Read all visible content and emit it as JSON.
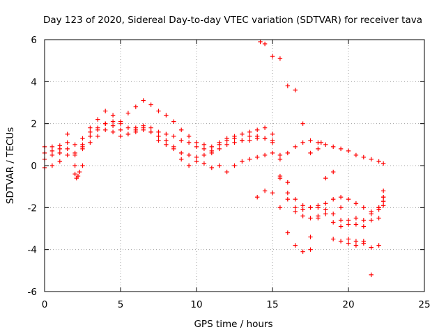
{
  "chart_data": {
    "type": "scatter",
    "title": "Day 123 of 2020, Sidereal Day-to-day VTEC variation (SDTVAR) for receiver tava",
    "xlabel": "GPS time / hours",
    "ylabel": "SDTVAR / TECUs",
    "xlim": [
      0,
      25
    ],
    "ylim": [
      -6,
      6
    ],
    "xticks": [
      0,
      5,
      10,
      15,
      20,
      25
    ],
    "yticks": [
      -6,
      -4,
      -2,
      0,
      2,
      4,
      6
    ],
    "grid": true,
    "marker": "+",
    "color": "#ff0000",
    "series": [
      {
        "x": [
          0.0,
          0.5,
          1.0,
          1.5,
          2.0,
          2.5,
          3.0,
          3.5,
          4.0,
          4.5,
          5.0,
          5.5,
          6.0,
          6.5,
          7.0,
          7.5,
          8.0,
          8.5,
          9.0,
          9.5,
          10.0,
          10.5,
          11.0,
          11.5,
          12.0,
          12.5,
          13.0,
          13.5,
          14.0,
          14.5,
          15.0,
          15.5,
          16.0,
          16.5,
          17.0,
          17.5,
          18.0,
          18.5,
          19.0,
          19.5,
          20.0,
          20.5,
          21.0,
          21.5,
          22.0,
          22.3
        ],
        "y": [
          0.9,
          0.9,
          0.95,
          1.1,
          1.0,
          1.3,
          1.6,
          1.8,
          2.0,
          2.1,
          2.0,
          1.8,
          1.7,
          1.8,
          1.8,
          1.6,
          1.5,
          1.4,
          1.2,
          1.1,
          0.9,
          0.8,
          0.7,
          1.0,
          1.2,
          1.3,
          1.2,
          1.4,
          1.4,
          1.3,
          1.1,
          -0.5,
          -1.6,
          -2.0,
          -2.1,
          -2.0,
          -2.0,
          -2.1,
          -2.3,
          -2.6,
          -2.6,
          -2.5,
          -2.6,
          -2.3,
          -2.0,
          -1.7
        ]
      },
      {
        "x": [
          0.0,
          0.5,
          1.0,
          1.5,
          2.0,
          2.5,
          3.0,
          3.5,
          4.0,
          4.5,
          5.0,
          5.5,
          6.0,
          6.5,
          7.0,
          7.5,
          8.0,
          8.5,
          9.0,
          9.5,
          10.0,
          10.5,
          11.0,
          11.5,
          12.0,
          12.5,
          13.0,
          13.5,
          14.0,
          14.5,
          15.0,
          15.5,
          16.0,
          16.5,
          17.0,
          17.5,
          18.0,
          18.5,
          19.0,
          19.5,
          20.0,
          20.5,
          21.0,
          21.5,
          22.0,
          22.3
        ],
        "y": [
          0.3,
          0.5,
          0.6,
          0.8,
          0.6,
          0.9,
          1.4,
          1.7,
          2.0,
          1.9,
          1.7,
          1.5,
          1.6,
          1.7,
          1.6,
          1.4,
          1.2,
          0.9,
          0.6,
          0.5,
          0.4,
          0.5,
          0.6,
          0.8,
          1.0,
          1.1,
          1.2,
          1.2,
          1.3,
          1.3,
          1.2,
          -0.6,
          -1.3,
          -2.2,
          -2.4,
          -2.5,
          -2.4,
          -2.3,
          -2.7,
          -2.9,
          -2.8,
          -2.8,
          -2.9,
          -2.6,
          -2.0,
          -1.5
        ]
      },
      {
        "x": [
          0.0,
          0.5,
          1.0,
          1.5,
          2.0,
          2.5,
          3.0,
          3.5,
          4.0,
          4.5,
          5.0,
          5.5,
          6.0,
          6.5,
          7.0,
          7.5,
          8.0,
          8.5,
          9.0,
          9.5,
          10.0,
          10.5,
          11.0,
          11.5,
          12.0,
          12.5,
          13.0,
          13.5,
          14.0,
          14.5,
          15.0,
          15.5,
          16.0,
          16.5,
          17.0,
          17.5,
          18.0,
          18.5,
          19.0,
          19.5,
          20.0,
          20.5,
          21.0,
          21.5,
          22.0,
          22.3
        ],
        "y": [
          -0.1,
          0.0,
          0.2,
          0.5,
          0.5,
          0.8,
          1.1,
          1.4,
          1.7,
          1.6,
          1.4,
          1.5,
          1.8,
          1.9,
          1.6,
          1.2,
          1.0,
          0.8,
          0.3,
          0.0,
          0.2,
          0.1,
          -0.1,
          0.0,
          -0.3,
          0.0,
          0.2,
          0.3,
          0.4,
          0.5,
          0.6,
          0.3,
          0.6,
          0.9,
          1.1,
          1.2,
          1.1,
          1.0,
          0.9,
          0.8,
          0.7,
          0.5,
          0.4,
          0.3,
          0.2,
          0.1
        ]
      },
      {
        "x": [
          0.0,
          0.5,
          1.0,
          1.5,
          2.0,
          2.5,
          3.0,
          3.5,
          4.0,
          4.5,
          5.0,
          5.5,
          6.0,
          6.5,
          7.0,
          7.5,
          8.0,
          8.5,
          9.0,
          9.5,
          10.0,
          10.5,
          11.0,
          11.5,
          12.0,
          12.5,
          13.0,
          13.5,
          14.0,
          14.5,
          15.0,
          15.5,
          16.0,
          16.5,
          17.0,
          17.5,
          18.0,
          18.5,
          19.0,
          19.5,
          20.0,
          20.5,
          21.0,
          21.5,
          22.0,
          22.3
        ],
        "y": [
          0.6,
          0.7,
          0.8,
          1.5,
          0.0,
          1.0,
          1.8,
          2.2,
          2.6,
          2.4,
          2.1,
          2.5,
          2.8,
          3.1,
          2.9,
          2.6,
          2.4,
          2.1,
          1.7,
          1.4,
          1.1,
          1.0,
          0.9,
          1.1,
          1.3,
          1.4,
          1.5,
          1.6,
          1.7,
          1.8,
          1.5,
          0.5,
          -0.8,
          -1.6,
          -1.9,
          -2.0,
          -1.9,
          -1.8,
          -1.6,
          -1.5,
          -1.6,
          -1.8,
          -2.0,
          -2.2,
          -2.1,
          -1.9
        ]
      },
      {
        "x": [
          2.0,
          2.1,
          2.2,
          2.3,
          2.5
        ],
        "y": [
          -0.4,
          -0.6,
          -0.5,
          -0.3,
          0.0
        ]
      },
      {
        "x": [
          14.0,
          14.5,
          15.0,
          15.5,
          16.0,
          16.5,
          17.0,
          17.5
        ],
        "y": [
          -1.5,
          -1.2,
          -1.3,
          -2.0,
          -3.2,
          -3.8,
          -4.1,
          -4.0
        ]
      },
      {
        "x": [
          14.2,
          14.5,
          15.0,
          15.5,
          16.0,
          16.5,
          17.0,
          17.5,
          18.0,
          18.2
        ],
        "y": [
          5.9,
          5.8,
          5.2,
          5.1,
          3.8,
          3.6,
          2.0,
          0.6,
          0.8,
          1.1
        ]
      },
      {
        "x": [
          17.5,
          18.0,
          18.5,
          19.0,
          19.5,
          20.0,
          20.5,
          21.0,
          21.5,
          22.0,
          22.3
        ],
        "y": [
          -3.4,
          -2.5,
          -0.6,
          -0.3,
          -2.0,
          -3.5,
          -3.8,
          -3.6,
          -5.2,
          -3.8,
          -1.2
        ]
      },
      {
        "x": [
          19.0,
          19.5,
          20.0,
          20.5,
          21.0,
          21.5,
          22.0,
          22.3
        ],
        "y": [
          -3.5,
          -3.6,
          -3.7,
          -3.6,
          -3.7,
          -3.9,
          -2.5,
          -1.5
        ]
      }
    ]
  }
}
